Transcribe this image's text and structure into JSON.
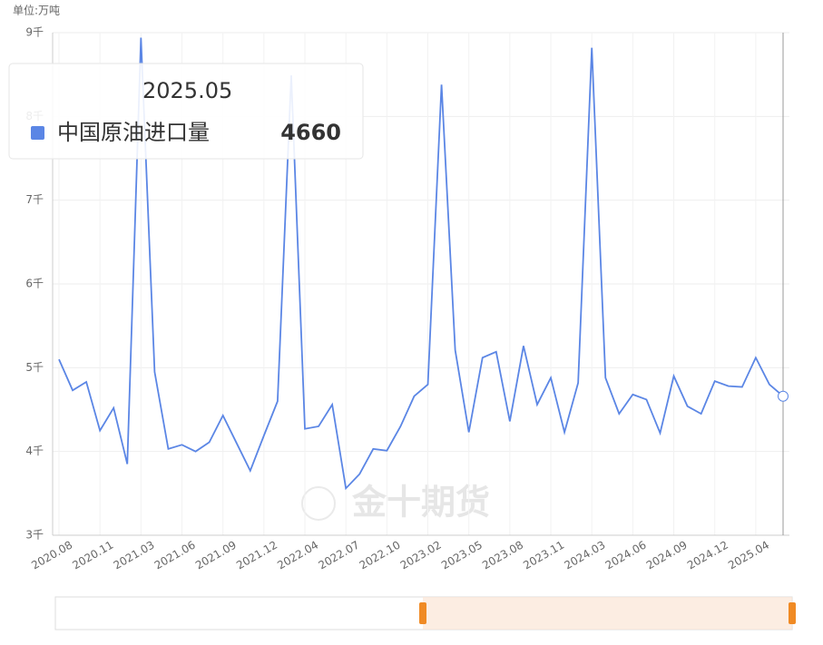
{
  "chart_data": {
    "type": "line",
    "unit_label": "单位:万吨",
    "watermark": "金十期货",
    "categories": [
      "2020.08",
      null,
      null,
      "2020.11",
      null,
      null,
      "2021.03",
      null,
      null,
      "2021.06",
      null,
      null,
      "2021.09",
      null,
      null,
      "2021.12",
      null,
      null,
      "2022.04",
      null,
      null,
      "2022.07",
      null,
      null,
      "2022.10",
      null,
      null,
      "2023.02",
      null,
      null,
      "2023.05",
      null,
      null,
      "2023.08",
      null,
      null,
      "2023.11",
      null,
      null,
      "2024.03",
      null,
      null,
      "2024.06",
      null,
      null,
      "2024.09",
      null,
      null,
      "2024.12",
      null,
      null,
      "2025.04",
      null,
      null
    ],
    "series": [
      {
        "name": "中国原油进口量",
        "color": "#5b86e5",
        "values": [
          5100,
          4730,
          4830,
          4250,
          4520,
          3850,
          8940,
          4950,
          4030,
          4080,
          4000,
          4110,
          4430,
          4100,
          3770,
          4190,
          4600,
          8490,
          4270,
          4300,
          4560,
          3560,
          3730,
          4030,
          4010,
          4300,
          4660,
          4800,
          8380,
          5210,
          4230,
          5120,
          5190,
          4360,
          5260,
          4560,
          4880,
          4230,
          4820,
          8820,
          4880,
          4450,
          4680,
          4620,
          4220,
          4900,
          4540,
          4450,
          4840,
          4780,
          4770,
          5120,
          4800,
          4660
        ]
      }
    ],
    "ylim": [
      3000,
      9000
    ],
    "yticks": [
      {
        "value": 3000,
        "label": "3千"
      },
      {
        "value": 4000,
        "label": "4千"
      },
      {
        "value": 5000,
        "label": "5千"
      },
      {
        "value": 6000,
        "label": "6千"
      },
      {
        "value": 7000,
        "label": "7千"
      },
      {
        "value": 8000,
        "label": "8千"
      },
      {
        "value": 9000,
        "label": "9千"
      }
    ],
    "grid": true,
    "tooltip": {
      "date": "2025.05"
    }
  }
}
